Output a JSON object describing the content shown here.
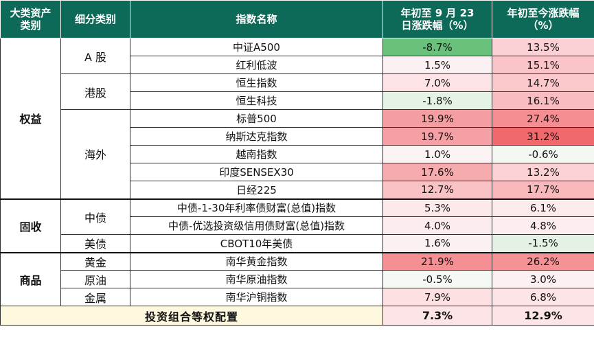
{
  "headers": {
    "asset_class": "大类资产\n类别",
    "sub_class": "细分类别",
    "index_name": "指数名称",
    "change_to_date": "年初至 9 月 23\n日涨跌幅（%）",
    "change_ytd": "年初至今涨跌幅\n（%）"
  },
  "colors": {
    "header_bg": "#0e6a58",
    "strong_green": "#69c17b",
    "light_green": "#e4f3e6",
    "neutral": "#fcf7f8",
    "light_red": "#fcd7da",
    "mid_red": "#f9b0b4",
    "strong_red": "#f47477",
    "footer_label_bg": "#fdf8de"
  },
  "groups": [
    {
      "category": "权益",
      "subgroups": [
        {
          "name": "A 股",
          "rows": [
            {
              "index": "中证A500",
              "ytd_to_0923": "-8.7%",
              "ytd": "13.5%",
              "c1": "#69c17b",
              "c2": "#fcd1d5"
            },
            {
              "index": "红利低波",
              "ytd_to_0923": "1.5%",
              "ytd": "15.1%",
              "c1": "#fcf1f2",
              "c2": "#fac4c8"
            }
          ]
        },
        {
          "name": "港股",
          "rows": [
            {
              "index": "恒生指数",
              "ytd_to_0923": "7.0%",
              "ytd": "14.7%",
              "c1": "#fde3e5",
              "c2": "#fbc8cb"
            },
            {
              "index": "恒生科技",
              "ytd_to_0923": "-1.8%",
              "ytd": "16.1%",
              "c1": "#e4f3e6",
              "c2": "#f9bdc1"
            }
          ]
        },
        {
          "name": "海外",
          "rows": [
            {
              "index": "标普500",
              "ytd_to_0923": "19.9%",
              "ytd": "27.4%",
              "c1": "#f59ea2",
              "c2": "#f48e92"
            },
            {
              "index": "纳斯达克指数",
              "ytd_to_0923": "19.7%",
              "ytd": "31.2%",
              "c1": "#f5a0a4",
              "c2": "#f2696d"
            },
            {
              "index": "越南指数",
              "ytd_to_0923": "1.0%",
              "ytd": "-0.6%",
              "c1": "#fcf3f4",
              "c2": "#f3f8f3"
            },
            {
              "index": "印度SENSEX30",
              "ytd_to_0923": "17.6%",
              "ytd": "13.2%",
              "c1": "#f6abaf",
              "c2": "#fcd2d5"
            },
            {
              "index": "日经225",
              "ytd_to_0923": "12.7%",
              "ytd": "17.7%",
              "c1": "#f9c2c5",
              "c2": "#f9b8bc"
            }
          ]
        }
      ]
    },
    {
      "category": "固收",
      "subgroups": [
        {
          "name": "中债",
          "rows": [
            {
              "index": "中债-1-30年利率债财富(总值)指数",
              "ytd_to_0923": "5.3%",
              "ytd": "6.1%",
              "c1": "#fde8ea",
              "c2": "#fdeaeb"
            },
            {
              "index": "中债-优选投资级信用债财富(总值)指数",
              "ytd_to_0923": "4.0%",
              "ytd": "4.8%",
              "c1": "#fdecee",
              "c2": "#fdedee"
            }
          ]
        },
        {
          "name": "美债",
          "rows": [
            {
              "index": "CBOT10年美债",
              "ytd_to_0923": "1.6%",
              "ytd": "-1.5%",
              "c1": "#fcf1f2",
              "c2": "#e3f2e5"
            }
          ]
        }
      ]
    },
    {
      "category": "商品",
      "subgroups": [
        {
          "name": "黄金",
          "rows": [
            {
              "index": "南华黄金指数",
              "ytd_to_0923": "21.9%",
              "ytd": "26.2%",
              "c1": "#f48f93",
              "c2": "#f59296"
            }
          ]
        },
        {
          "name": "原油",
          "rows": [
            {
              "index": "南华原油指数",
              "ytd_to_0923": "-0.5%",
              "ytd": "3.0%",
              "c1": "#f4f9f4",
              "c2": "#fdf0f1"
            }
          ]
        },
        {
          "name": "金属",
          "rows": [
            {
              "index": "南华沪铜指数",
              "ytd_to_0923": "7.9%",
              "ytd": "6.8%",
              "c1": "#fde0e2",
              "c2": "#fde4e6"
            }
          ]
        }
      ]
    }
  ],
  "footer": {
    "label": "投资组合等权配置",
    "ytd_to_0923": "7.3%",
    "ytd": "12.9%"
  }
}
